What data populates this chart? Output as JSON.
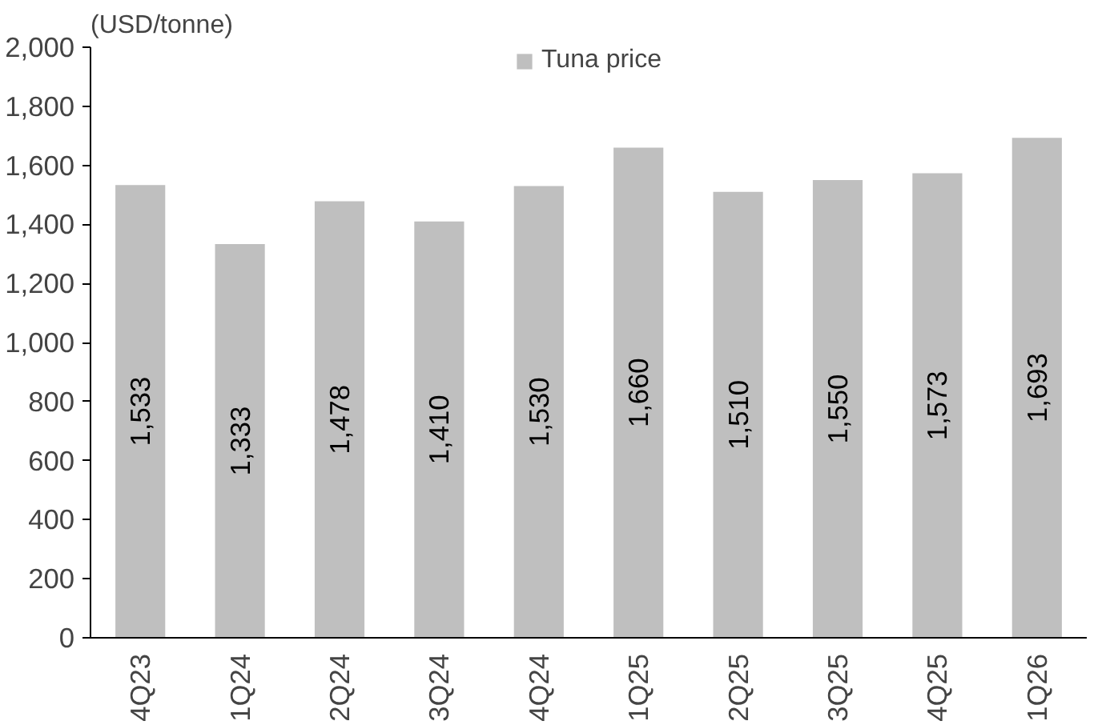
{
  "chart_data": {
    "type": "bar",
    "ylabel": "(USD/tonne)",
    "categories": [
      "4Q23",
      "1Q24",
      "2Q24",
      "3Q24",
      "4Q24",
      "1Q25",
      "2Q25",
      "3Q25",
      "4Q25",
      "1Q26"
    ],
    "series": [
      {
        "name": "Tuna price",
        "color": "#bfbfbf",
        "values": [
          1533,
          1333,
          1478,
          1410,
          1530,
          1660,
          1510,
          1550,
          1573,
          1693
        ],
        "value_labels": [
          "1,533",
          "1,333",
          "1,478",
          "1,410",
          "1,530",
          "1,660",
          "1,510",
          "1,550",
          "1,573",
          "1,693"
        ]
      }
    ],
    "ylim": [
      0,
      2000
    ],
    "yticks": [
      0,
      {
        "value": 200,
        "label": "200"
      },
      {
        "value": 400,
        "label": "400"
      },
      {
        "value": 600,
        "label": "600"
      },
      {
        "value": 800,
        "label": "800"
      },
      {
        "value": 1000,
        "label": "1,000"
      },
      {
        "value": 1200,
        "label": "1,200"
      },
      {
        "value": 1400,
        "label": "1,400"
      },
      {
        "value": 1600,
        "label": "1,600"
      },
      {
        "value": 1800,
        "label": "1,800"
      },
      {
        "value": 2000,
        "label": "2,000"
      }
    ],
    "grid": false,
    "legend": "top"
  }
}
